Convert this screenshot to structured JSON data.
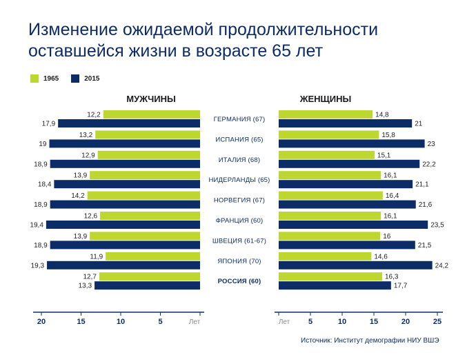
{
  "title": "Изменение ожидаемой продолжительности оставшейся жизни в возрасте 65 лет",
  "legend": [
    {
      "label": "1965",
      "color": "#bdd630"
    },
    {
      "label": "2015",
      "color": "#0c2c67"
    }
  ],
  "source": "Источник: Институт демографии  НИУ ВШЭ",
  "chart_data": [
    {
      "type": "bar",
      "title": "МУЖЧИНЫ",
      "orientation": "horizontal-mirrored",
      "axis_unit_label": "Лет",
      "xlim": [
        0,
        20
      ],
      "ticks": [
        "20",
        "15",
        "10",
        "5",
        "Лет"
      ],
      "categories": [
        "ГЕРМАНИЯ (67)",
        "ИСПАНИЯ (65)",
        "ИТАЛИЯ (68)",
        "НИДЕРЛАНДЫ (65)",
        "НОРВЕГИЯ (67)",
        "ФРАНЦИЯ (60)",
        "ШВЕЦИЯ (61-67)",
        "ЯПОНИЯ (70)",
        "РОССИЯ (60)"
      ],
      "series": [
        {
          "name": "1965",
          "values": [
            12.2,
            13.2,
            12.9,
            13.9,
            14.2,
            12.6,
            13.9,
            11.9,
            12.7
          ],
          "labels": [
            "12,2",
            "13,2",
            "12,9",
            "13,9",
            "14,2",
            "12,6",
            "13,9",
            "11,9",
            "12,7"
          ]
        },
        {
          "name": "2015",
          "values": [
            17.9,
            19,
            18.9,
            18.4,
            18.9,
            19.4,
            18.9,
            19.3,
            13.3
          ],
          "labels": [
            "17,9",
            "19",
            "18,9",
            "18,4",
            "18,9",
            "19,4",
            "18,9",
            "19,3",
            "13,3"
          ]
        }
      ]
    },
    {
      "type": "bar",
      "title": "ЖЕНЩИНЫ",
      "orientation": "horizontal",
      "axis_unit_label": "Лет",
      "xlim": [
        0,
        25
      ],
      "ticks": [
        "Лет",
        "5",
        "10",
        "15",
        "20",
        "25"
      ],
      "categories": [
        "ГЕРМАНИЯ (67)",
        "ИСПАНИЯ (65)",
        "ИТАЛИЯ (68)",
        "НИДЕРЛАНДЫ (65)",
        "НОРВЕГИЯ (67)",
        "ФРАНЦИЯ (60)",
        "ШВЕЦИЯ (61-67)",
        "ЯПОНИЯ (70)",
        "РОССИЯ (60)"
      ],
      "series": [
        {
          "name": "1965",
          "values": [
            14.8,
            15.8,
            15.1,
            16.1,
            16.4,
            16.1,
            16,
            14.6,
            16.3
          ],
          "labels": [
            "14,8",
            "15,8",
            "15,1",
            "16,1",
            "16,4",
            "16,1",
            "16",
            "14,6",
            "16,3"
          ]
        },
        {
          "name": "2015",
          "values": [
            21,
            23,
            22.2,
            21.1,
            21.6,
            23.5,
            21.5,
            24.2,
            17.7
          ],
          "labels": [
            "21",
            "23",
            "22,2",
            "21,1",
            "21,6",
            "23,5",
            "21,5",
            "24,2",
            "17,7"
          ]
        }
      ]
    }
  ]
}
